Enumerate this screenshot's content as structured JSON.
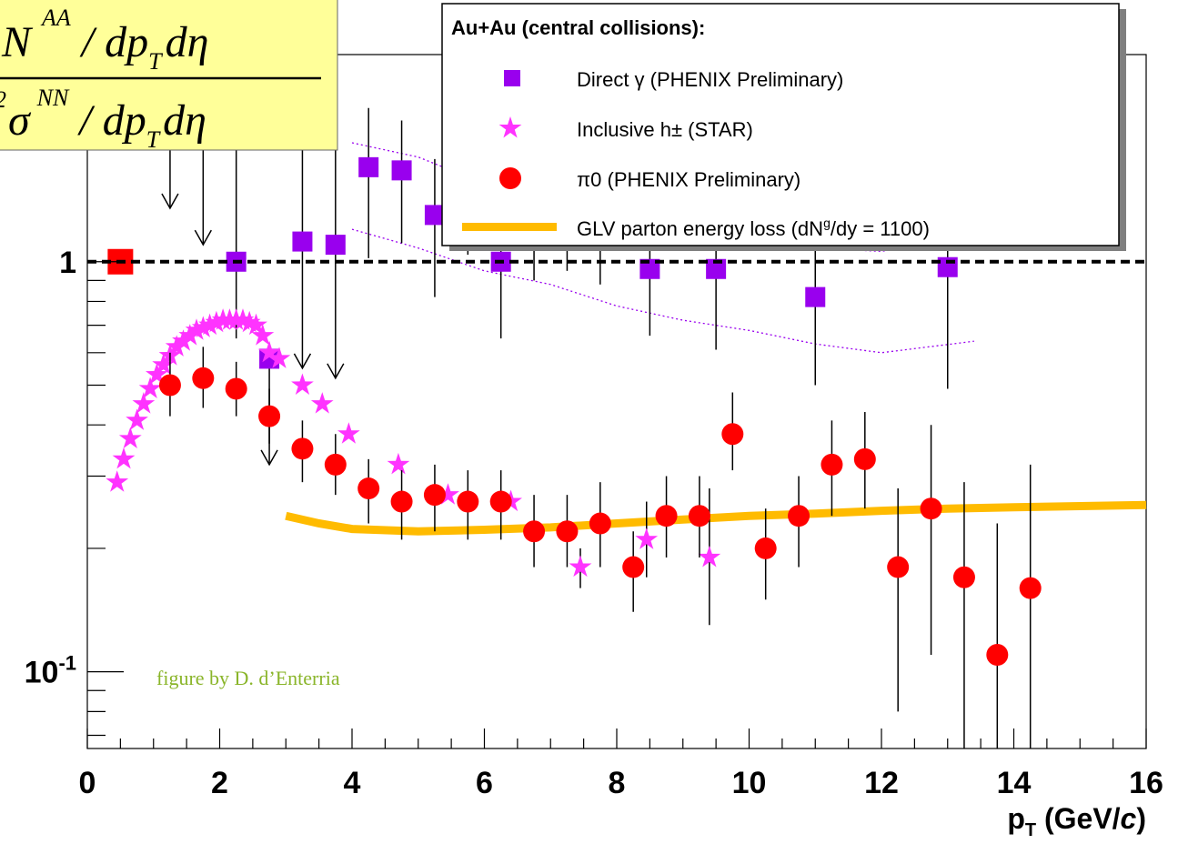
{
  "chart_data": {
    "type": "scatter",
    "x_axis": {
      "label_main": "p",
      "label_sub": "T",
      "label_unit": " (GeV/",
      "label_unit_c": "c",
      "label_unit_close": ")",
      "range": [
        0,
        16
      ],
      "ticks": [
        0,
        2,
        4,
        6,
        8,
        10,
        12,
        14,
        16
      ],
      "tick_labels": [
        "0",
        "2",
        "4",
        "6",
        "8",
        "10",
        "12",
        "14",
        "16"
      ]
    },
    "y_axis": {
      "scale": "log",
      "range": [
        0.065,
        3.2
      ],
      "ticks": [
        0.1,
        1
      ],
      "tick_labels": [
        {
          "base": "10",
          "exp": "-1"
        },
        {
          "base": "1",
          "exp": ""
        }
      ]
    },
    "formula": {
      "numerator": "N",
      "numerator_sup": "AA",
      "numerator_rest": " / dp",
      "numerator_sub": "T",
      "numerator_end": "dη",
      "denominator_sup": "2",
      "denominator_sigma": "σ",
      "denominator_sigma_sup": "NN",
      "denominator_rest": " / dp",
      "denominator_sub": "T",
      "denominator_end": "dη"
    },
    "credit": "figure by D. d’Enterria",
    "legend": {
      "title": "Au+Au (central collisions):",
      "position": "top-right",
      "entries": [
        {
          "text": "Direct γ (PHENIX Preliminary)",
          "marker": "square",
          "color": "#9900ee"
        },
        {
          "text": "Inclusive h± (STAR)",
          "marker": "star",
          "color": "#ff33ff"
        },
        {
          "text": "π0 (PHENIX Preliminary)",
          "marker": "circle",
          "color": "#ff0000"
        },
        {
          "text": "GLV parton energy loss (dN",
          "text_sup": "g",
          "text_end": "/dy = 1100)",
          "marker": "line",
          "color": "#ffbb00"
        }
      ]
    },
    "reference_line": {
      "y": 1,
      "style": "dashed",
      "color": "#000000"
    },
    "normalization_box": {
      "x": 0.5,
      "y": 1.0,
      "color": "#ff0000"
    },
    "series": [
      {
        "name": "Direct γ (PHENIX Preliminary)",
        "marker": "square",
        "color": "#9900ee",
        "points": [
          {
            "x": 1.25,
            "y": 2.9,
            "upper_limit": true,
            "arrow_to": 1.35
          },
          {
            "x": 1.75,
            "y": 2.0,
            "upper_limit": true,
            "arrow_to": 1.1
          },
          {
            "x": 2.25,
            "y": 1.0,
            "err_lo": 0.35,
            "err_hi": 1.55
          },
          {
            "x": 2.75,
            "y": 0.58,
            "upper_limit": true,
            "arrow_to": 0.32
          },
          {
            "x": 3.25,
            "y": 1.12,
            "upper_limit": true,
            "arrow_to": 0.55,
            "err_hi": 1.22
          },
          {
            "x": 3.75,
            "y": 1.1,
            "upper_limit": true,
            "arrow_to": 0.52,
            "err_hi": 1.26
          },
          {
            "x": 4.25,
            "y": 1.7,
            "err_lo": 0.68,
            "err_hi": 0.67
          },
          {
            "x": 4.75,
            "y": 1.67,
            "err_lo": 0.56,
            "err_hi": 0.54
          },
          {
            "x": 5.25,
            "y": 1.3,
            "err_lo": 0.48,
            "err_hi": 0.48
          },
          {
            "x": 5.75,
            "y": 1.4,
            "err_lo": 0.36,
            "err_hi": 0.4
          },
          {
            "x": 6.25,
            "y": 1.0,
            "err_lo": 0.35,
            "err_hi": 0.38
          },
          {
            "x": 6.75,
            "y": 1.2,
            "err_lo": 0.3,
            "err_hi": 0.32
          },
          {
            "x": 7.25,
            "y": 1.3,
            "err_lo": 0.35,
            "err_hi": 0.4
          },
          {
            "x": 7.75,
            "y": 1.18,
            "err_lo": 0.3,
            "err_hi": 0.2
          },
          {
            "x": 8.5,
            "y": 0.96,
            "err_lo": 0.3,
            "err_hi": 0.23
          },
          {
            "x": 9.5,
            "y": 0.96,
            "err_lo": 0.35,
            "err_hi": 0.3
          },
          {
            "x": 11.0,
            "y": 0.82,
            "err_lo": 0.32,
            "err_hi": 0.3
          },
          {
            "x": 13.0,
            "y": 0.97,
            "err_lo": 0.48,
            "err_hi": 0.43
          }
        ],
        "band_upper": [
          [
            4.0,
            1.95
          ],
          [
            5.0,
            1.8
          ],
          [
            6.0,
            1.55
          ],
          [
            7.0,
            1.35
          ],
          [
            8.0,
            1.22
          ],
          [
            9.0,
            1.18
          ],
          [
            10.0,
            1.12
          ],
          [
            11.0,
            1.08
          ],
          [
            12.0,
            1.06
          ],
          [
            13.4,
            1.16
          ]
        ],
        "band_lower": [
          [
            4.0,
            1.2
          ],
          [
            5.0,
            1.08
          ],
          [
            6.0,
            0.95
          ],
          [
            7.0,
            0.88
          ],
          [
            8.0,
            0.78
          ],
          [
            9.0,
            0.72
          ],
          [
            10.0,
            0.68
          ],
          [
            11.0,
            0.63
          ],
          [
            12.0,
            0.6
          ],
          [
            13.4,
            0.64
          ]
        ]
      },
      {
        "name": "Inclusive h± (STAR)",
        "marker": "star",
        "color": "#ff33ff",
        "points": [
          {
            "x": 0.45,
            "y": 0.29
          },
          {
            "x": 0.55,
            "y": 0.33
          },
          {
            "x": 0.65,
            "y": 0.37
          },
          {
            "x": 0.75,
            "y": 0.41
          },
          {
            "x": 0.85,
            "y": 0.45
          },
          {
            "x": 0.95,
            "y": 0.49
          },
          {
            "x": 1.05,
            "y": 0.53
          },
          {
            "x": 1.15,
            "y": 0.56
          },
          {
            "x": 1.25,
            "y": 0.59
          },
          {
            "x": 1.35,
            "y": 0.62
          },
          {
            "x": 1.45,
            "y": 0.64
          },
          {
            "x": 1.55,
            "y": 0.66
          },
          {
            "x": 1.65,
            "y": 0.68
          },
          {
            "x": 1.75,
            "y": 0.69
          },
          {
            "x": 1.85,
            "y": 0.7
          },
          {
            "x": 1.95,
            "y": 0.71
          },
          {
            "x": 2.05,
            "y": 0.72
          },
          {
            "x": 2.15,
            "y": 0.72
          },
          {
            "x": 2.25,
            "y": 0.72
          },
          {
            "x": 2.35,
            "y": 0.72
          },
          {
            "x": 2.45,
            "y": 0.71
          },
          {
            "x": 2.55,
            "y": 0.7
          },
          {
            "x": 2.65,
            "y": 0.66
          },
          {
            "x": 2.75,
            "y": 0.6
          },
          {
            "x": 2.9,
            "y": 0.58
          },
          {
            "x": 3.25,
            "y": 0.5
          },
          {
            "x": 3.55,
            "y": 0.45
          },
          {
            "x": 3.95,
            "y": 0.38
          },
          {
            "x": 4.7,
            "y": 0.32
          },
          {
            "x": 5.45,
            "y": 0.27
          },
          {
            "x": 6.4,
            "y": 0.26
          },
          {
            "x": 7.45,
            "y": 0.18,
            "err_lo": 0.02,
            "err_hi": 0.02
          },
          {
            "x": 8.45,
            "y": 0.21,
            "err_lo": 0.04,
            "err_hi": 0.05
          },
          {
            "x": 9.4,
            "y": 0.19,
            "err_lo": 0.06,
            "err_hi": 0.09
          }
        ]
      },
      {
        "name": "π0 (PHENIX Preliminary)",
        "marker": "circle",
        "color": "#ff0000",
        "points": [
          {
            "x": 1.25,
            "y": 0.5,
            "err_lo": 0.08,
            "err_hi": 0.1
          },
          {
            "x": 1.75,
            "y": 0.52,
            "err_lo": 0.08,
            "err_hi": 0.1
          },
          {
            "x": 2.25,
            "y": 0.49,
            "err_lo": 0.07,
            "err_hi": 0.08
          },
          {
            "x": 2.75,
            "y": 0.42,
            "err_lo": 0.06,
            "err_hi": 0.07
          },
          {
            "x": 3.25,
            "y": 0.35,
            "err_lo": 0.06,
            "err_hi": 0.06
          },
          {
            "x": 3.75,
            "y": 0.32,
            "err_lo": 0.05,
            "err_hi": 0.06
          },
          {
            "x": 4.25,
            "y": 0.28,
            "err_lo": 0.05,
            "err_hi": 0.05
          },
          {
            "x": 4.75,
            "y": 0.26,
            "err_lo": 0.05,
            "err_hi": 0.05
          },
          {
            "x": 5.25,
            "y": 0.27,
            "err_lo": 0.05,
            "err_hi": 0.05
          },
          {
            "x": 5.75,
            "y": 0.26,
            "err_lo": 0.05,
            "err_hi": 0.05
          },
          {
            "x": 6.25,
            "y": 0.26,
            "err_lo": 0.05,
            "err_hi": 0.05
          },
          {
            "x": 6.75,
            "y": 0.22,
            "err_lo": 0.04,
            "err_hi": 0.05
          },
          {
            "x": 7.25,
            "y": 0.22,
            "err_lo": 0.04,
            "err_hi": 0.05
          },
          {
            "x": 7.75,
            "y": 0.23,
            "err_lo": 0.05,
            "err_hi": 0.06
          },
          {
            "x": 8.25,
            "y": 0.18,
            "err_lo": 0.04,
            "err_hi": 0.04
          },
          {
            "x": 8.75,
            "y": 0.24,
            "err_lo": 0.05,
            "err_hi": 0.06
          },
          {
            "x": 9.25,
            "y": 0.24,
            "err_lo": 0.05,
            "err_hi": 0.06
          },
          {
            "x": 9.75,
            "y": 0.38,
            "err_lo": 0.07,
            "err_hi": 0.1
          },
          {
            "x": 10.25,
            "y": 0.2,
            "err_lo": 0.05,
            "err_hi": 0.05
          },
          {
            "x": 10.75,
            "y": 0.24,
            "err_lo": 0.06,
            "err_hi": 0.06
          },
          {
            "x": 11.25,
            "y": 0.32,
            "err_lo": 0.08,
            "err_hi": 0.09
          },
          {
            "x": 11.75,
            "y": 0.33,
            "err_lo": 0.08,
            "err_hi": 0.1
          },
          {
            "x": 12.25,
            "y": 0.18,
            "err_lo": 0.1,
            "err_hi": 0.1
          },
          {
            "x": 12.75,
            "y": 0.25,
            "err_lo": 0.14,
            "err_hi": 0.15
          },
          {
            "x": 13.25,
            "y": 0.17,
            "err_lo": 0.11,
            "err_hi": 0.12
          },
          {
            "x": 13.75,
            "y": 0.11,
            "err_lo": 0.05,
            "err_hi": 0.12
          },
          {
            "x": 14.25,
            "y": 0.16,
            "err_lo": 0.1,
            "err_hi": 0.16
          }
        ]
      },
      {
        "name": "GLV parton energy loss (dNg/dy = 1100)",
        "marker": "line",
        "color": "#ffbb00",
        "points": [
          {
            "x": 3.0,
            "y": 0.24
          },
          {
            "x": 3.5,
            "y": 0.23
          },
          {
            "x": 4.0,
            "y": 0.223
          },
          {
            "x": 5.0,
            "y": 0.22
          },
          {
            "x": 6.0,
            "y": 0.222
          },
          {
            "x": 7.0,
            "y": 0.225
          },
          {
            "x": 8.0,
            "y": 0.23
          },
          {
            "x": 9.0,
            "y": 0.235
          },
          {
            "x": 10.0,
            "y": 0.24
          },
          {
            "x": 11.0,
            "y": 0.243
          },
          {
            "x": 12.0,
            "y": 0.247
          },
          {
            "x": 13.0,
            "y": 0.25
          },
          {
            "x": 14.0,
            "y": 0.252
          },
          {
            "x": 16.0,
            "y": 0.255
          }
        ]
      }
    ]
  }
}
